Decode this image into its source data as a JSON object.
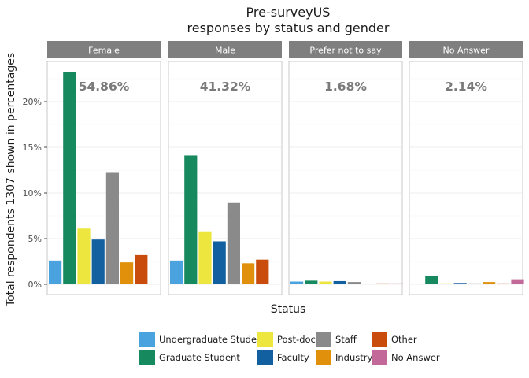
{
  "chart_data": {
    "type": "bar",
    "title": [
      "Pre-surveyUS",
      "responses by status and gender"
    ],
    "xlabel": "Status",
    "ylabel": "Total respondents 1307 shown in percentages",
    "ylim": [
      0,
      24.5
    ],
    "yticks": [
      0,
      5,
      10,
      15,
      20
    ],
    "ytick_labels": [
      "0%",
      "5%",
      "10%",
      "15%",
      "20%"
    ],
    "grid": true,
    "legend_position": "bottom",
    "categories": [
      "Undergraduate Student",
      "Graduate Student",
      "Post-doc",
      "Faculty",
      "Staff",
      "Industry",
      "Other",
      "No Answer"
    ],
    "colors": [
      "#4aa3df",
      "#16895e",
      "#ede63f",
      "#1360a1",
      "#8a8a8a",
      "#e0900a",
      "#c94c0c",
      "#c2699a"
    ],
    "legend_labels": [
      "Undergraduate Student",
      "Graduate Student",
      "Post-doc",
      "Faculty",
      "Staff",
      "Industry",
      "Other",
      "No Answer"
    ],
    "panels": [
      {
        "name": "Female",
        "total_label": "54.86%",
        "values": [
          2.6,
          23.2,
          6.1,
          4.9,
          12.2,
          2.4,
          3.2,
          0
        ]
      },
      {
        "name": "Male",
        "total_label": "41.32%",
        "values": [
          2.6,
          14.1,
          5.8,
          4.7,
          8.9,
          2.3,
          2.7,
          0
        ]
      },
      {
        "name": "Prefer not to say",
        "total_label": "1.68%",
        "values": [
          0.3,
          0.4,
          0.3,
          0.35,
          0.25,
          0.05,
          0.1,
          0.1
        ]
      },
      {
        "name": "No Answer",
        "total_label": "2.14%",
        "values": [
          0.05,
          0.95,
          0.1,
          0.15,
          0.1,
          0.25,
          0.1,
          0.55
        ]
      }
    ]
  }
}
